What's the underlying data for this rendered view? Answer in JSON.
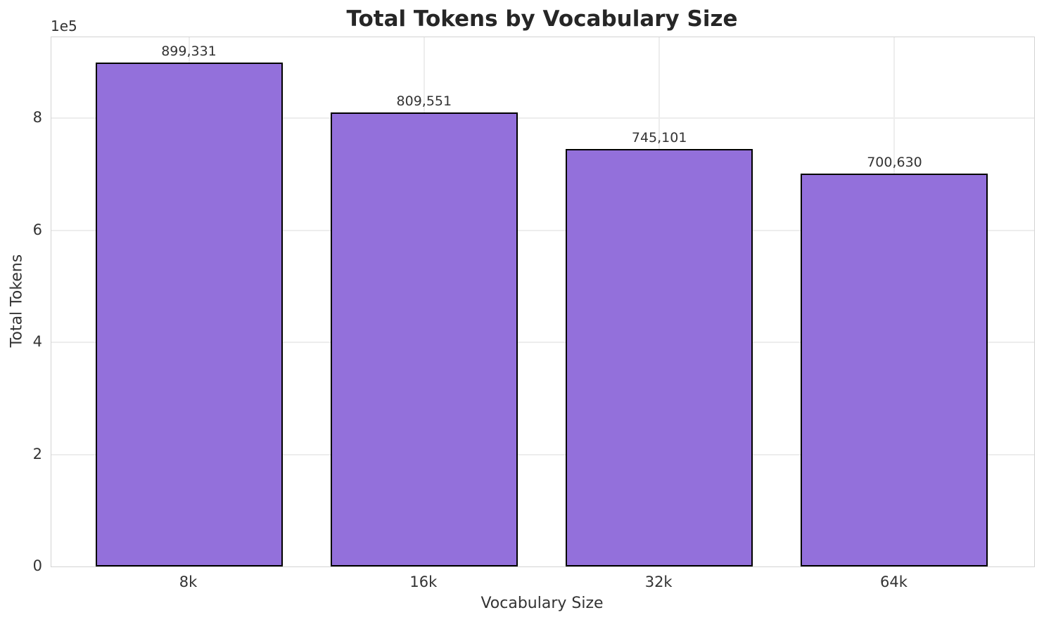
{
  "chart_data": {
    "type": "bar",
    "title": "Total Tokens by Vocabulary Size",
    "xlabel": "Vocabulary Size",
    "ylabel": "Total Tokens",
    "y_offset_text": "1e5",
    "categories": [
      "8k",
      "16k",
      "32k",
      "64k"
    ],
    "values": [
      899331,
      809551,
      745101,
      700630
    ],
    "bar_labels": [
      "899,331",
      "809,551",
      "745,101",
      "700,630"
    ],
    "yticks": [
      0,
      2,
      4,
      6,
      8
    ],
    "ytick_scale": 100000,
    "ylim": [
      0,
      944297
    ],
    "grid": "on",
    "legend": "none",
    "bar_color": "#9370DB",
    "bar_edge_color": "#000000",
    "grid_color": "#ededed",
    "spine_color": "#d3d3d3",
    "title_color": "#262626",
    "text_color": "#333333",
    "background_color": "#ffffff"
  }
}
